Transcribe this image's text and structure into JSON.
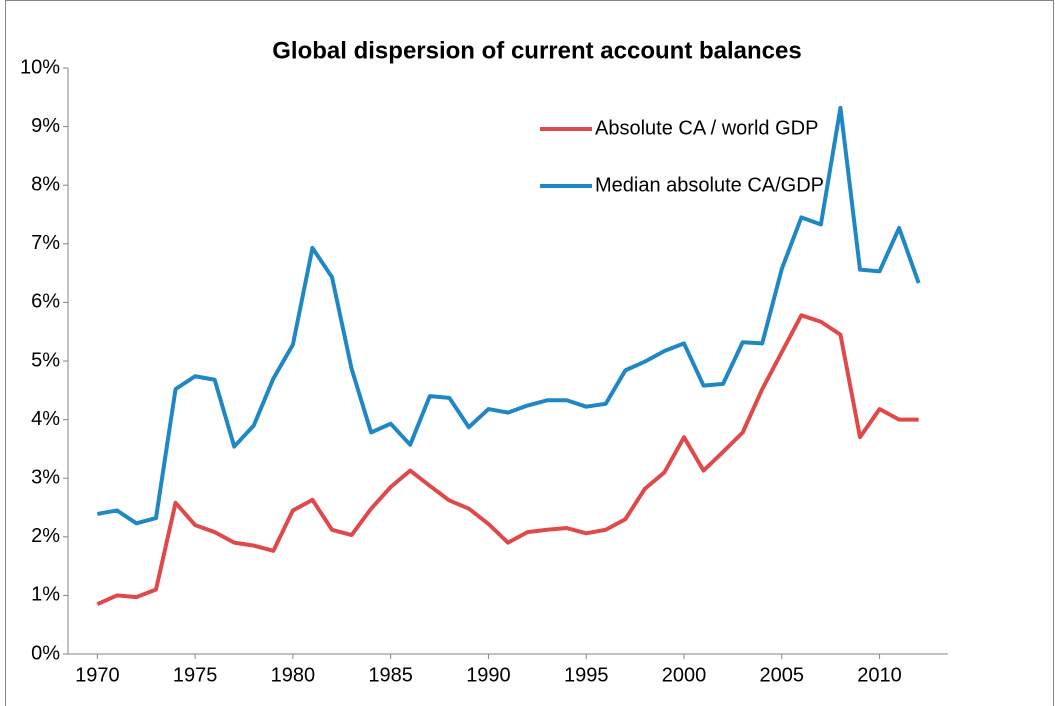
{
  "chart_data": {
    "type": "line",
    "title": "Global dispersion of current account balances",
    "x": [
      1970,
      1971,
      1972,
      1973,
      1974,
      1975,
      1976,
      1977,
      1978,
      1979,
      1980,
      1981,
      1982,
      1983,
      1984,
      1985,
      1986,
      1987,
      1988,
      1989,
      1990,
      1991,
      1992,
      1993,
      1994,
      1995,
      1996,
      1997,
      1998,
      1999,
      2000,
      2001,
      2002,
      2003,
      2004,
      2005,
      2006,
      2007,
      2008,
      2009,
      2010,
      2011,
      2012
    ],
    "series": [
      {
        "name": "Absolute CA / world GDP",
        "color": "#e0494a",
        "values": [
          0.85,
          1.0,
          0.97,
          1.1,
          2.58,
          2.2,
          2.08,
          1.9,
          1.85,
          1.76,
          2.45,
          2.63,
          2.12,
          2.03,
          2.48,
          2.85,
          3.13,
          2.87,
          2.62,
          2.48,
          2.22,
          1.9,
          2.08,
          2.12,
          2.15,
          2.06,
          2.12,
          2.3,
          2.82,
          3.1,
          3.7,
          3.13,
          3.45,
          3.78,
          4.52,
          5.15,
          5.78,
          5.67,
          5.45,
          3.7,
          4.18,
          4.0,
          4.0
        ]
      },
      {
        "name": "Median absolute CA/GDP",
        "color": "#1f87c5",
        "values": [
          2.39,
          2.45,
          2.23,
          2.32,
          4.52,
          4.74,
          4.68,
          3.54,
          3.9,
          4.7,
          5.28,
          6.93,
          6.43,
          4.87,
          3.78,
          3.93,
          3.57,
          4.4,
          4.37,
          3.87,
          4.18,
          4.12,
          4.24,
          4.33,
          4.33,
          4.22,
          4.27,
          4.84,
          4.99,
          5.17,
          5.3,
          4.58,
          4.61,
          5.32,
          5.3,
          6.57,
          7.45,
          7.33,
          9.32,
          6.56,
          6.53,
          7.27,
          6.33
        ]
      }
    ],
    "xlim": [
      1968.5,
      2013.5
    ],
    "xticks": [
      1970,
      1975,
      1980,
      1985,
      1990,
      1995,
      2000,
      2005,
      2010
    ],
    "ylim": [
      0,
      10
    ],
    "yticks": [
      {
        "value": 0,
        "label": "0%"
      },
      {
        "value": 1,
        "label": "1%"
      },
      {
        "value": 2,
        "label": "2%"
      },
      {
        "value": 3,
        "label": "3%"
      },
      {
        "value": 4,
        "label": "4%"
      },
      {
        "value": 5,
        "label": "5%"
      },
      {
        "value": 6,
        "label": "6%"
      },
      {
        "value": 7,
        "label": "7%"
      },
      {
        "value": 8,
        "label": "8%"
      },
      {
        "value": 9,
        "label": "9%"
      },
      {
        "value": 10,
        "label": "10%"
      }
    ],
    "grid": false,
    "legend": "upper right"
  }
}
